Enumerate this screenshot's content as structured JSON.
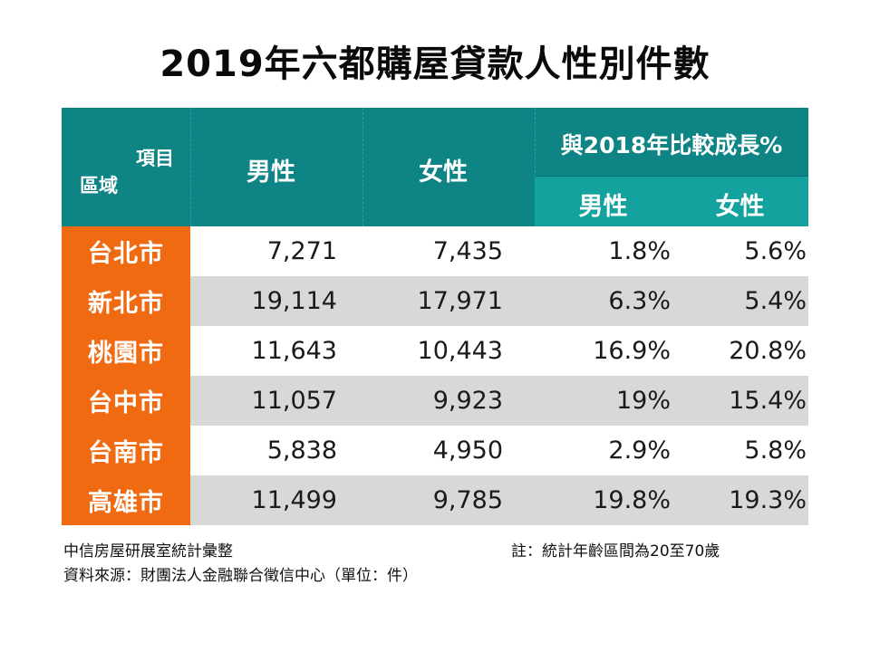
{
  "title": "2019年六都購屋貸款人性別件數",
  "chart_data": {
    "type": "table",
    "title": "2019年六都購屋貸款人性別件數",
    "header": {
      "corner_top": "項目",
      "corner_bottom": "區域",
      "male": "男性",
      "female": "女性",
      "growth_group": "與2018年比較成長%",
      "growth_male": "男性",
      "growth_female": "女性"
    },
    "rows": [
      {
        "region": "台北市",
        "male": "7,271",
        "female": "7,435",
        "male_growth": "1.8%",
        "female_growth": "5.6%"
      },
      {
        "region": "新北市",
        "male": "19,114",
        "female": "17,971",
        "male_growth": "6.3%",
        "female_growth": "5.4%"
      },
      {
        "region": "桃園市",
        "male": "11,643",
        "female": "10,443",
        "male_growth": "16.9%",
        "female_growth": "20.8%"
      },
      {
        "region": "台中市",
        "male": "11,057",
        "female": "9,923",
        "male_growth": "19%",
        "female_growth": "15.4%"
      },
      {
        "region": "台南市",
        "male": "5,838",
        "female": "4,950",
        "male_growth": "2.9%",
        "female_growth": "5.8%"
      },
      {
        "region": "高雄市",
        "male": "11,499",
        "female": "9,785",
        "male_growth": "19.8%",
        "female_growth": "19.3%"
      }
    ]
  },
  "footer": {
    "left_line1": "中信房屋研展室統計彙整",
    "left_line2": "資料來源：財團法人金融聯合徵信中心（單位：件）",
    "note": "註：統計年齡區間為20至70歲"
  },
  "colors": {
    "header_teal": "#0e8485",
    "subheader_teal": "#14a29f",
    "region_orange": "#f06a12",
    "row_gray": "#d9d8d9"
  }
}
